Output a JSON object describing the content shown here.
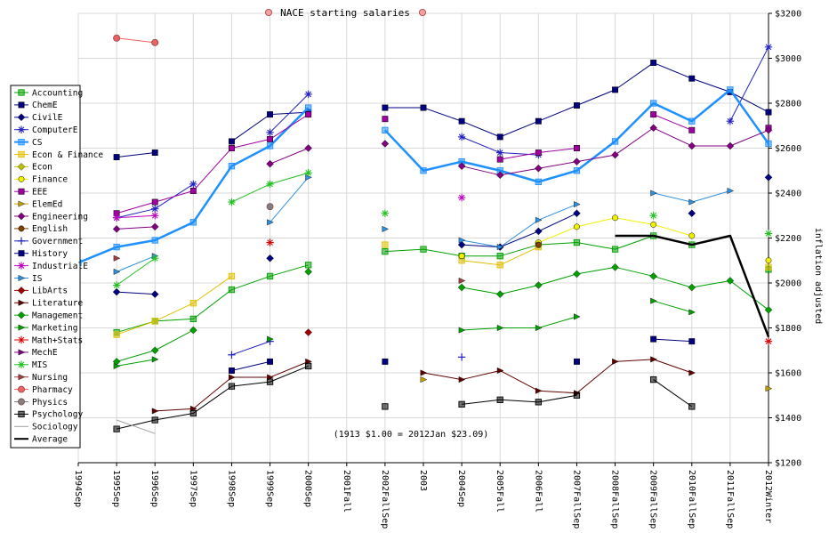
{
  "chart_data": {
    "type": "line",
    "title": "NACE starting salaries",
    "ylabel": "inflation adjusted",
    "annotation": "(1913 $1.00 = 2012Jan $23.09)",
    "categories": [
      "1994Sep",
      "1995Sep",
      "1996Sep",
      "1997Sep",
      "1998Sep",
      "1999Sep",
      "2000Sep",
      "2001Fall",
      "2002FallSep",
      "2003",
      "2004Sep",
      "2005Fall",
      "2006Fall",
      "2007FallSep",
      "2008FallSep",
      "2009FallSep",
      "2010FallSep",
      "2011FallSep",
      "2012Winter"
    ],
    "ylim": [
      1200,
      3200
    ],
    "yticks": [
      1200,
      1400,
      1600,
      1800,
      2000,
      2200,
      2400,
      2600,
      2800,
      3000,
      3200
    ],
    "ytick_labels": [
      "$1200",
      "$1400",
      "$1600",
      "$1800",
      "$2000",
      "$2200",
      "$2400",
      "$2600",
      "$2800",
      "$3000",
      "$3200"
    ],
    "grid": true,
    "legend_position": "left",
    "series": [
      {
        "name": "Accounting",
        "color": "#00a000",
        "marker": "square-open",
        "values": [
          null,
          1780,
          1830,
          1840,
          1970,
          2030,
          2080,
          null,
          2140,
          2150,
          2120,
          2120,
          2170,
          2180,
          2150,
          2210,
          2170,
          null,
          2060
        ]
      },
      {
        "name": "ChemE",
        "color": "#000080",
        "marker": "square",
        "values": [
          null,
          2560,
          2580,
          null,
          2630,
          2750,
          2760,
          null,
          2780,
          2780,
          2720,
          2650,
          2720,
          2790,
          2860,
          2980,
          2910,
          2850,
          2760
        ]
      },
      {
        "name": "CivilE",
        "color": "#000080",
        "marker": "diamond",
        "values": [
          null,
          1960,
          1950,
          null,
          null,
          2110,
          null,
          null,
          null,
          null,
          2170,
          2160,
          2230,
          2310,
          null,
          null,
          2310,
          null,
          2470
        ]
      },
      {
        "name": "ComputerE",
        "color": "#2020c0",
        "marker": "star",
        "values": [
          null,
          2290,
          2330,
          2440,
          null,
          2670,
          2840,
          null,
          null,
          null,
          2650,
          2580,
          2570,
          null,
          null,
          null,
          null,
          2720,
          3050
        ]
      },
      {
        "name": "CS",
        "color": "#1e90ff",
        "marker": "square-open",
        "width": 2.5,
        "values": [
          2090,
          2160,
          2190,
          2270,
          2520,
          2610,
          2780,
          null,
          2680,
          2500,
          2540,
          2500,
          2450,
          2500,
          2630,
          2800,
          2720,
          2860,
          2620
        ]
      },
      {
        "name": "Econ & Finance",
        "color": "#e0c000",
        "marker": "square-open",
        "values": [
          null,
          1770,
          1830,
          1910,
          2030,
          null,
          null,
          null,
          2170,
          null,
          2100,
          2080,
          2160,
          null,
          null,
          null,
          null,
          null,
          2070
        ]
      },
      {
        "name": "Econ",
        "color": "#c0c000",
        "marker": "diamond",
        "values": [
          null,
          null,
          null,
          null,
          null,
          null,
          null,
          null,
          null,
          null,
          null,
          null,
          null,
          null,
          null,
          null,
          null,
          null,
          null
        ]
      },
      {
        "name": "Finance",
        "color": "#f0f000",
        "marker": "circle",
        "values": [
          null,
          null,
          null,
          null,
          null,
          null,
          null,
          null,
          null,
          null,
          2120,
          null,
          2180,
          2250,
          2290,
          2260,
          2210,
          null,
          2100
        ]
      },
      {
        "name": "EEE",
        "color": "#a000a0",
        "marker": "square",
        "values": [
          null,
          2310,
          2360,
          2410,
          2600,
          2640,
          2750,
          null,
          2730,
          null,
          null,
          2550,
          2580,
          2600,
          null,
          2750,
          2680,
          null,
          2690
        ]
      },
      {
        "name": "ElemEd",
        "color": "#c0a000",
        "marker": "triangle-right",
        "values": [
          null,
          null,
          null,
          null,
          null,
          null,
          null,
          null,
          null,
          1570,
          null,
          null,
          null,
          null,
          null,
          null,
          null,
          null,
          1530
        ]
      },
      {
        "name": "Engineering",
        "color": "#800080",
        "marker": "diamond",
        "values": [
          null,
          2240,
          2250,
          null,
          null,
          2530,
          2600,
          null,
          2620,
          null,
          2520,
          2480,
          2510,
          2540,
          2570,
          2690,
          2610,
          2610,
          2680
        ]
      },
      {
        "name": "English",
        "color": "#804000",
        "marker": "circle",
        "values": [
          null,
          null,
          null,
          null,
          null,
          null,
          null,
          null,
          null,
          null,
          null,
          null,
          2170,
          null,
          null,
          null,
          null,
          null,
          null
        ]
      },
      {
        "name": "Government",
        "color": "#2020c0",
        "marker": "plus",
        "values": [
          null,
          null,
          null,
          null,
          1680,
          1740,
          null,
          null,
          null,
          null,
          1670,
          null,
          null,
          null,
          null,
          null,
          null,
          null,
          null
        ]
      },
      {
        "name": "History",
        "color": "#000080",
        "marker": "square",
        "values": [
          null,
          null,
          null,
          null,
          1610,
          1650,
          null,
          null,
          1650,
          null,
          null,
          null,
          null,
          1650,
          null,
          1750,
          1740,
          null,
          null
        ]
      },
      {
        "name": "IndustrialE",
        "color": "#c000c0",
        "marker": "star",
        "values": [
          null,
          2290,
          2300,
          null,
          null,
          null,
          null,
          null,
          null,
          null,
          2380,
          null,
          null,
          null,
          null,
          null,
          null,
          null,
          null
        ]
      },
      {
        "name": "IS",
        "color": "#3090e0",
        "marker": "triangle-right",
        "values": [
          null,
          2050,
          2120,
          null,
          null,
          2270,
          2470,
          null,
          2240,
          null,
          2190,
          2160,
          2280,
          2350,
          null,
          2400,
          2360,
          2410,
          null
        ]
      },
      {
        "name": "LibArts",
        "color": "#a00000",
        "marker": "diamond",
        "values": [
          null,
          null,
          null,
          null,
          null,
          null,
          1780,
          null,
          null,
          null,
          null,
          null,
          null,
          null,
          null,
          null,
          null,
          null,
          null
        ]
      },
      {
        "name": "Literature",
        "color": "#600000",
        "marker": "triangle-right",
        "values": [
          null,
          null,
          1430,
          1440,
          1580,
          1580,
          1650,
          null,
          null,
          1600,
          1570,
          1610,
          1520,
          1510,
          1650,
          1660,
          1600,
          null,
          null
        ]
      },
      {
        "name": "Management",
        "color": "#00a000",
        "marker": "diamond",
        "values": [
          null,
          1650,
          1700,
          1790,
          null,
          null,
          2050,
          null,
          null,
          null,
          1980,
          1950,
          1990,
          2040,
          2070,
          2030,
          1980,
          2010,
          1880
        ]
      },
      {
        "name": "Marketing",
        "color": "#00a000",
        "marker": "triangle-right",
        "values": [
          null,
          1630,
          1660,
          null,
          null,
          1750,
          null,
          null,
          null,
          null,
          1790,
          1800,
          1800,
          1850,
          null,
          1920,
          1870,
          null,
          null
        ]
      },
      {
        "name": "Math+Stats",
        "color": "#e00000",
        "marker": "star",
        "values": [
          null,
          null,
          null,
          null,
          null,
          2180,
          null,
          null,
          null,
          null,
          null,
          null,
          null,
          null,
          null,
          null,
          null,
          null,
          1740
        ]
      },
      {
        "name": "MechE",
        "color": "#800080",
        "marker": "triangle-right",
        "values": [
          null,
          null,
          null,
          null,
          null,
          null,
          null,
          null,
          null,
          null,
          null,
          null,
          null,
          null,
          null,
          null,
          null,
          null,
          null
        ]
      },
      {
        "name": "MIS",
        "color": "#20c020",
        "marker": "star",
        "values": [
          null,
          1990,
          2110,
          null,
          2360,
          2440,
          2490,
          null,
          2310,
          null,
          null,
          null,
          null,
          null,
          null,
          2300,
          null,
          null,
          2220
        ]
      },
      {
        "name": "Nursing",
        "color": "#a04040",
        "marker": "triangle-right",
        "values": [
          null,
          2110,
          null,
          null,
          null,
          null,
          null,
          null,
          null,
          null,
          2010,
          null,
          null,
          null,
          null,
          null,
          null,
          null,
          null
        ]
      },
      {
        "name": "Pharmacy",
        "color": "#f06060",
        "marker": "circle-filled",
        "values": [
          null,
          3090,
          3070,
          null,
          null,
          null,
          null,
          null,
          null,
          null,
          null,
          null,
          null,
          null,
          null,
          null,
          null,
          null,
          null
        ]
      },
      {
        "name": "Physics",
        "color": "#808080",
        "marker": "circle-filled",
        "values": [
          null,
          null,
          null,
          null,
          null,
          2340,
          null,
          null,
          null,
          null,
          null,
          null,
          null,
          null,
          null,
          null,
          null,
          null,
          null
        ]
      },
      {
        "name": "Psychology",
        "color": "#000000",
        "marker": "square-open",
        "values": [
          null,
          1350,
          1390,
          1420,
          1540,
          1560,
          1630,
          null,
          1450,
          null,
          1460,
          1480,
          1470,
          1500,
          null,
          1570,
          1450,
          null,
          null
        ]
      },
      {
        "name": "Sociology",
        "color": "#a0a0a0",
        "marker": "none",
        "values": [
          null,
          1390,
          1330,
          null,
          null,
          null,
          null,
          null,
          null,
          null,
          null,
          null,
          null,
          null,
          null,
          null,
          null,
          null,
          null
        ]
      },
      {
        "name": "Average",
        "color": "#000000",
        "marker": "none",
        "width": 2.5,
        "values": [
          null,
          null,
          null,
          null,
          null,
          null,
          null,
          null,
          null,
          null,
          null,
          null,
          null,
          null,
          2210,
          2210,
          2170,
          2210,
          1760
        ]
      }
    ]
  }
}
